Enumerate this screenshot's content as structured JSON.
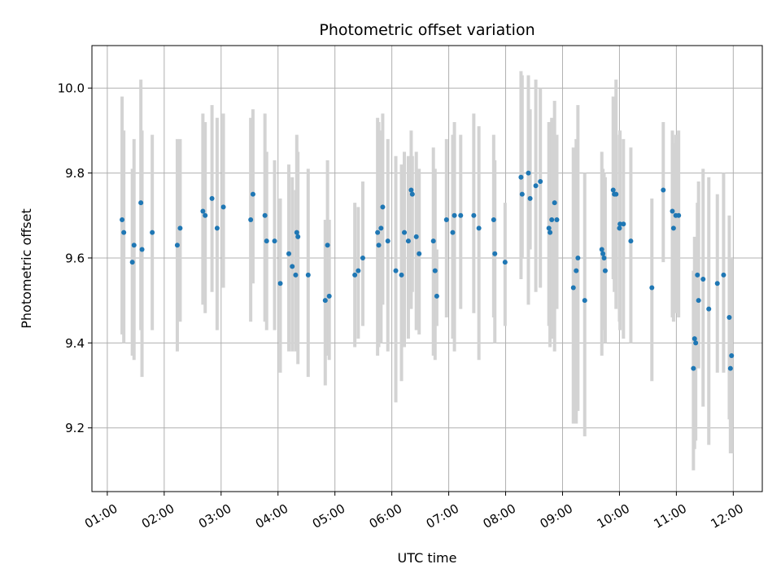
{
  "chart_data": {
    "type": "scatter",
    "title": "Photometric offset variation",
    "xlabel": "UTC time",
    "ylabel": "Photometric offset",
    "grid": true,
    "xlim": [
      0.73,
      12.51
    ],
    "ylim": [
      9.05,
      10.1
    ],
    "x_unit": "hours UTC",
    "x_ticks": [
      1,
      2,
      3,
      4,
      5,
      6,
      7,
      8,
      9,
      10,
      11,
      12
    ],
    "x_tick_labels": [
      "01:00",
      "02:00",
      "03:00",
      "04:00",
      "05:00",
      "06:00",
      "07:00",
      "08:00",
      "09:00",
      "10:00",
      "11:00",
      "12:00"
    ],
    "y_ticks": [
      9.2,
      9.4,
      9.6,
      9.8,
      10.0
    ],
    "y_tick_labels": [
      "9.2",
      "9.4",
      "9.6",
      "9.8",
      "10.0"
    ],
    "colors": {
      "marker": "#1f77b4",
      "errorbar": "#d3d3d3",
      "grid": "#b0b0b0"
    },
    "series": [
      {
        "name": "offset",
        "x": [
          1.26,
          1.29,
          1.44,
          1.47,
          1.59,
          1.61,
          1.79,
          2.23,
          2.28,
          2.68,
          2.72,
          2.84,
          2.93,
          3.04,
          3.52,
          3.56,
          3.77,
          3.8,
          3.94,
          4.04,
          4.19,
          4.25,
          4.31,
          4.33,
          4.35,
          4.53,
          4.83,
          4.87,
          4.9,
          5.35,
          5.41,
          5.49,
          5.75,
          5.77,
          5.81,
          5.84,
          5.93,
          6.07,
          6.17,
          6.22,
          6.29,
          6.34,
          6.36,
          6.43,
          6.48,
          6.73,
          6.76,
          6.79,
          6.96,
          7.07,
          7.1,
          7.21,
          7.44,
          7.53,
          7.79,
          7.81,
          7.99,
          8.27,
          8.29,
          8.4,
          8.43,
          8.53,
          8.61,
          8.76,
          8.78,
          8.81,
          8.86,
          8.9,
          9.19,
          9.24,
          9.27,
          9.39,
          9.69,
          9.71,
          9.73,
          9.75,
          9.89,
          9.91,
          9.94,
          10.0,
          10.01,
          10.07,
          10.2,
          10.57,
          10.77,
          10.93,
          10.95,
          10.99,
          11.04,
          11.3,
          11.32,
          11.34,
          11.37,
          11.39,
          11.47,
          11.57,
          11.72,
          11.83,
          11.93,
          11.95,
          11.97
        ],
        "y": [
          9.69,
          9.66,
          9.59,
          9.63,
          9.73,
          9.62,
          9.66,
          9.63,
          9.67,
          9.71,
          9.7,
          9.74,
          9.67,
          9.72,
          9.69,
          9.75,
          9.7,
          9.64,
          9.64,
          9.54,
          9.61,
          9.58,
          9.56,
          9.66,
          9.65,
          9.56,
          9.5,
          9.63,
          9.51,
          9.56,
          9.57,
          9.6,
          9.66,
          9.63,
          9.67,
          9.72,
          9.64,
          9.57,
          9.56,
          9.66,
          9.64,
          9.76,
          9.75,
          9.65,
          9.61,
          9.64,
          9.57,
          9.51,
          9.69,
          9.66,
          9.7,
          9.7,
          9.7,
          9.67,
          9.69,
          9.61,
          9.59,
          9.79,
          9.75,
          9.8,
          9.74,
          9.77,
          9.78,
          9.67,
          9.66,
          9.69,
          9.73,
          9.69,
          9.53,
          9.57,
          9.6,
          9.5,
          9.62,
          9.61,
          9.6,
          9.57,
          9.76,
          9.75,
          9.75,
          9.67,
          9.68,
          9.68,
          9.64,
          9.53,
          9.76,
          9.71,
          9.67,
          9.7,
          9.7,
          9.34,
          9.41,
          9.4,
          9.56,
          9.5,
          9.55,
          9.48,
          9.54,
          9.56,
          9.46,
          9.34,
          9.37
        ],
        "yerr_low": [
          9.42,
          9.4,
          9.37,
          9.36,
          9.43,
          9.32,
          9.43,
          9.38,
          9.45,
          9.49,
          9.47,
          9.52,
          9.43,
          9.53,
          9.45,
          9.54,
          9.45,
          9.43,
          9.43,
          9.33,
          9.38,
          9.38,
          9.38,
          9.4,
          9.35,
          9.32,
          9.3,
          9.37,
          9.36,
          9.39,
          9.41,
          9.44,
          9.37,
          9.39,
          9.4,
          9.49,
          9.38,
          9.26,
          9.31,
          9.39,
          9.41,
          9.48,
          9.52,
          9.43,
          9.42,
          9.37,
          9.36,
          9.44,
          9.46,
          9.41,
          9.38,
          9.48,
          9.47,
          9.36,
          9.46,
          9.4,
          9.44,
          9.55,
          9.6,
          9.49,
          9.62,
          9.52,
          9.53,
          9.44,
          9.39,
          9.41,
          9.38,
          9.48,
          9.21,
          9.21,
          9.24,
          9.18,
          9.37,
          9.43,
          9.44,
          9.4,
          9.55,
          9.52,
          9.48,
          9.45,
          9.43,
          9.41,
          9.4,
          9.31,
          9.59,
          9.46,
          9.45,
          9.47,
          9.46,
          9.1,
          9.15,
          9.17,
          9.37,
          9.34,
          9.25,
          9.16,
          9.33,
          9.33,
          9.22,
          9.14,
          9.14
        ],
        "yerr_high": [
          9.98,
          9.9,
          9.81,
          9.88,
          10.02,
          9.9,
          9.89,
          9.88,
          9.88,
          9.94,
          9.92,
          9.96,
          9.93,
          9.94,
          9.93,
          9.95,
          9.94,
          9.85,
          9.83,
          9.74,
          9.82,
          9.79,
          9.76,
          9.89,
          9.85,
          9.81,
          9.69,
          9.83,
          9.69,
          9.73,
          9.72,
          9.78,
          9.93,
          9.92,
          9.9,
          9.94,
          9.88,
          9.84,
          9.82,
          9.85,
          9.84,
          9.9,
          9.84,
          9.85,
          9.81,
          9.86,
          9.81,
          9.62,
          9.88,
          9.89,
          9.92,
          9.89,
          9.94,
          9.91,
          9.89,
          9.83,
          9.73,
          10.04,
          10.03,
          10.03,
          9.95,
          10.02,
          10.0,
          9.92,
          9.91,
          9.93,
          9.97,
          9.89,
          9.86,
          9.88,
          9.96,
          9.8,
          9.85,
          9.81,
          9.8,
          9.79,
          9.98,
          9.96,
          10.02,
          9.89,
          9.9,
          9.88,
          9.86,
          9.74,
          9.92,
          9.9,
          9.87,
          9.89,
          9.9,
          9.57,
          9.65,
          9.63,
          9.73,
          9.78,
          9.81,
          9.79,
          9.75,
          9.8,
          9.7,
          9.55,
          9.6
        ]
      }
    ]
  }
}
